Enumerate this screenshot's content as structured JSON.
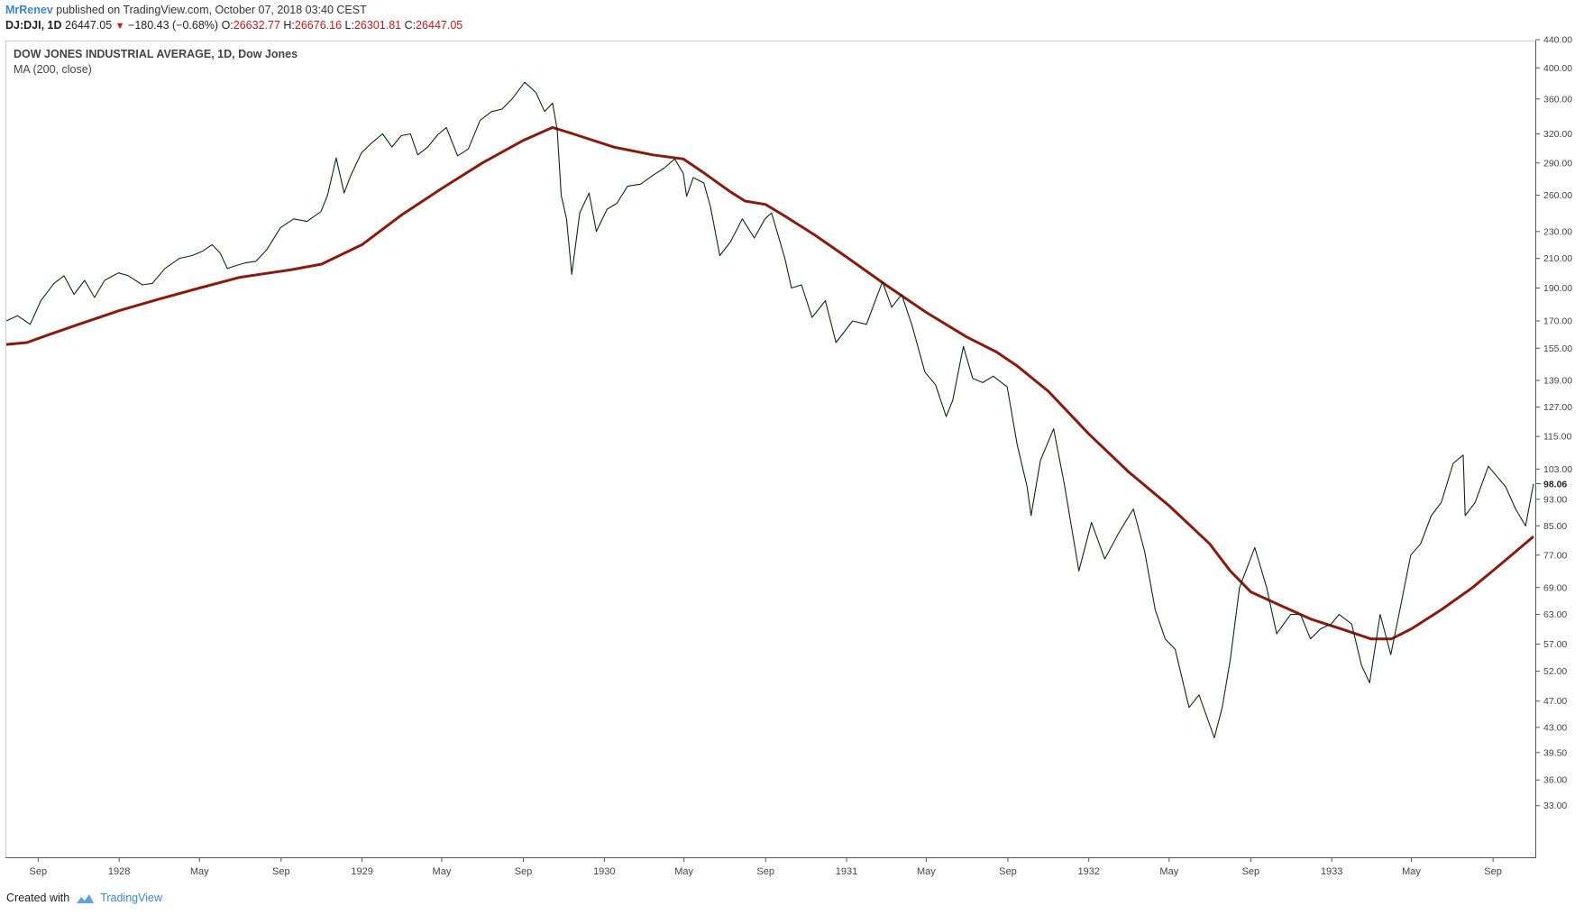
{
  "header": {
    "author": "MrRenev",
    "published": "published on TradingView.com, October 07, 2018 03:40 CEST",
    "symbol": "DJ:DJI, 1D",
    "last": "26447.05",
    "change": "−180.43 (−0.68%)",
    "open_label": "O:",
    "open": "26632.77",
    "high_label": "H:",
    "high": "26676.16",
    "low_label": "L:",
    "low": "26301.81",
    "close_label": "C:",
    "close": "26447.05"
  },
  "legend": {
    "title": "DOW JONES INDUSTRIAL AVERAGE, 1D, Dow Jones",
    "indicator": "MA (200, close)"
  },
  "footer": {
    "created_with": "Created with",
    "brand": "TradingView",
    "brand_icon": "tradingview-cloud-icon"
  },
  "colors": {
    "price": "#0b2a12",
    "ma": "#8b1a0e",
    "axis": "#555555",
    "brand": "#3d85c6",
    "negative": "#c2181c"
  },
  "chart_data": {
    "type": "line",
    "scale": "log",
    "ylim": [
      30,
      440
    ],
    "y_ticks": [
      "440.00",
      "400.00",
      "360.00",
      "320.00",
      "290.00",
      "260.00",
      "230.00",
      "210.00",
      "190.00",
      "170.00",
      "155.00",
      "139.00",
      "127.00",
      "115.00",
      "103.00",
      "93.00",
      "85.00",
      "77.00",
      "69.00",
      "63.00",
      "57.00",
      "52.00",
      "47.00",
      "43.00",
      "39.50",
      "36.00",
      "33.00"
    ],
    "y_tick_values": [
      440,
      400,
      360,
      320,
      290,
      260,
      230,
      210,
      190,
      170,
      155,
      139,
      127,
      115,
      103,
      93,
      85,
      77,
      69,
      63,
      57,
      52,
      47,
      43,
      39.5,
      36,
      33
    ],
    "last_value_label": "98.06",
    "last_value": 98.06,
    "x_range": [
      "1927-07-15",
      "1933-11-01"
    ],
    "x_ticks": [
      {
        "label": "Sep",
        "date": "1927-09-01"
      },
      {
        "label": "1928",
        "date": "1928-01-01"
      },
      {
        "label": "May",
        "date": "1928-05-01"
      },
      {
        "label": "Sep",
        "date": "1928-09-01"
      },
      {
        "label": "1929",
        "date": "1929-01-01"
      },
      {
        "label": "May",
        "date": "1929-05-01"
      },
      {
        "label": "Sep",
        "date": "1929-09-01"
      },
      {
        "label": "1930",
        "date": "1930-01-01"
      },
      {
        "label": "May",
        "date": "1930-05-01"
      },
      {
        "label": "Sep",
        "date": "1930-09-01"
      },
      {
        "label": "1931",
        "date": "1931-01-01"
      },
      {
        "label": "May",
        "date": "1931-05-01"
      },
      {
        "label": "Sep",
        "date": "1931-09-01"
      },
      {
        "label": "1932",
        "date": "1932-01-01"
      },
      {
        "label": "May",
        "date": "1932-05-01"
      },
      {
        "label": "Sep",
        "date": "1932-09-01"
      },
      {
        "label": "1933",
        "date": "1933-01-01"
      },
      {
        "label": "May",
        "date": "1933-05-01"
      },
      {
        "label": "Sep",
        "date": "1933-09-01"
      }
    ],
    "series": [
      {
        "name": "DOW JONES INDUSTRIAL AVERAGE",
        "points": [
          [
            "1927-07-15",
            170
          ],
          [
            "1927-08-01",
            173
          ],
          [
            "1927-08-20",
            168
          ],
          [
            "1927-09-05",
            182
          ],
          [
            "1927-09-25",
            193
          ],
          [
            "1927-10-10",
            198
          ],
          [
            "1927-10-25",
            186
          ],
          [
            "1927-11-10",
            195
          ],
          [
            "1927-11-25",
            184
          ],
          [
            "1927-12-10",
            195
          ],
          [
            "1927-12-31",
            200
          ],
          [
            "1928-01-15",
            198
          ],
          [
            "1928-02-05",
            192
          ],
          [
            "1928-02-20",
            193
          ],
          [
            "1928-03-10",
            203
          ],
          [
            "1928-04-01",
            210
          ],
          [
            "1928-04-20",
            212
          ],
          [
            "1928-05-05",
            215
          ],
          [
            "1928-05-20",
            220
          ],
          [
            "1928-06-01",
            214
          ],
          [
            "1928-06-12",
            203
          ],
          [
            "1928-06-25",
            205
          ],
          [
            "1928-07-10",
            207
          ],
          [
            "1928-07-25",
            208
          ],
          [
            "1928-08-10",
            216
          ],
          [
            "1928-08-31",
            233
          ],
          [
            "1928-09-20",
            240
          ],
          [
            "1928-10-10",
            238
          ],
          [
            "1928-10-31",
            246
          ],
          [
            "1928-11-10",
            260
          ],
          [
            "1928-11-23",
            295
          ],
          [
            "1928-12-05",
            262
          ],
          [
            "1928-12-15",
            278
          ],
          [
            "1928-12-31",
            300
          ],
          [
            "1929-01-15",
            310
          ],
          [
            "1929-02-01",
            320
          ],
          [
            "1929-02-15",
            306
          ],
          [
            "1929-03-01",
            318
          ],
          [
            "1929-03-15",
            320
          ],
          [
            "1929-03-26",
            298
          ],
          [
            "1929-04-10",
            306
          ],
          [
            "1929-04-25",
            319
          ],
          [
            "1929-05-08",
            327
          ],
          [
            "1929-05-25",
            297
          ],
          [
            "1929-06-10",
            304
          ],
          [
            "1929-06-28",
            335
          ],
          [
            "1929-07-15",
            345
          ],
          [
            "1929-07-31",
            348
          ],
          [
            "1929-08-15",
            360
          ],
          [
            "1929-09-03",
            381
          ],
          [
            "1929-09-20",
            368
          ],
          [
            "1929-10-03",
            345
          ],
          [
            "1929-10-15",
            355
          ],
          [
            "1929-10-22",
            325
          ],
          [
            "1929-10-28",
            260
          ],
          [
            "1929-11-05",
            240
          ],
          [
            "1929-11-13",
            199
          ],
          [
            "1929-11-25",
            245
          ],
          [
            "1929-12-09",
            262
          ],
          [
            "1929-12-20",
            230
          ],
          [
            "1930-01-05",
            248
          ],
          [
            "1930-01-20",
            253
          ],
          [
            "1930-02-05",
            268
          ],
          [
            "1930-02-25",
            270
          ],
          [
            "1930-03-15",
            278
          ],
          [
            "1930-04-01",
            285
          ],
          [
            "1930-04-17",
            294
          ],
          [
            "1930-04-30",
            280
          ],
          [
            "1930-05-05",
            259
          ],
          [
            "1930-05-15",
            276
          ],
          [
            "1930-05-31",
            271
          ],
          [
            "1930-06-10",
            250
          ],
          [
            "1930-06-24",
            212
          ],
          [
            "1930-07-10",
            222
          ],
          [
            "1930-07-28",
            240
          ],
          [
            "1930-08-15",
            225
          ],
          [
            "1930-08-31",
            240
          ],
          [
            "1930-09-10",
            245
          ],
          [
            "1930-09-30",
            210
          ],
          [
            "1930-10-10",
            190
          ],
          [
            "1930-10-25",
            192
          ],
          [
            "1930-11-10",
            172
          ],
          [
            "1930-11-30",
            182
          ],
          [
            "1930-12-16",
            158
          ],
          [
            "1931-01-10",
            170
          ],
          [
            "1931-01-31",
            168
          ],
          [
            "1931-02-24",
            194
          ],
          [
            "1931-03-10",
            178
          ],
          [
            "1931-03-25",
            186
          ],
          [
            "1931-04-10",
            167
          ],
          [
            "1931-04-29",
            143
          ],
          [
            "1931-05-15",
            137
          ],
          [
            "1931-05-31",
            123
          ],
          [
            "1931-06-10",
            130
          ],
          [
            "1931-06-26",
            156
          ],
          [
            "1931-07-10",
            140
          ],
          [
            "1931-07-25",
            138
          ],
          [
            "1931-08-10",
            141
          ],
          [
            "1931-08-31",
            136
          ],
          [
            "1931-09-15",
            112
          ],
          [
            "1931-09-30",
            97
          ],
          [
            "1931-10-06",
            88
          ],
          [
            "1931-10-20",
            106
          ],
          [
            "1931-11-09",
            118
          ],
          [
            "1931-11-25",
            98
          ],
          [
            "1931-12-17",
            73
          ],
          [
            "1932-01-05",
            86
          ],
          [
            "1932-01-25",
            76
          ],
          [
            "1932-02-15",
            83
          ],
          [
            "1932-03-08",
            90
          ],
          [
            "1932-03-25",
            78
          ],
          [
            "1932-04-10",
            64
          ],
          [
            "1932-04-25",
            58
          ],
          [
            "1932-05-10",
            56
          ],
          [
            "1932-05-31",
            46
          ],
          [
            "1932-06-15",
            48
          ],
          [
            "1932-07-08",
            41.5
          ],
          [
            "1932-07-20",
            46
          ],
          [
            "1932-08-01",
            54
          ],
          [
            "1932-08-15",
            69
          ],
          [
            "1932-09-07",
            79
          ],
          [
            "1932-09-25",
            69
          ],
          [
            "1932-10-10",
            59
          ],
          [
            "1932-10-31",
            63
          ],
          [
            "1932-11-15",
            63
          ],
          [
            "1932-11-30",
            58
          ],
          [
            "1932-12-15",
            60
          ],
          [
            "1932-12-31",
            61
          ],
          [
            "1933-01-12",
            63
          ],
          [
            "1933-01-31",
            61
          ],
          [
            "1933-02-15",
            53
          ],
          [
            "1933-02-27",
            50
          ],
          [
            "1933-03-15",
            63
          ],
          [
            "1933-03-31",
            55
          ],
          [
            "1933-04-15",
            65
          ],
          [
            "1933-04-30",
            77
          ],
          [
            "1933-05-15",
            80
          ],
          [
            "1933-05-31",
            88
          ],
          [
            "1933-06-15",
            92
          ],
          [
            "1933-07-03",
            105
          ],
          [
            "1933-07-18",
            108
          ],
          [
            "1933-07-21",
            88
          ],
          [
            "1933-08-05",
            92
          ],
          [
            "1933-08-25",
            104
          ],
          [
            "1933-09-05",
            101
          ],
          [
            "1933-09-20",
            97
          ],
          [
            "1933-10-05",
            90
          ],
          [
            "1933-10-20",
            85
          ],
          [
            "1933-11-01",
            98
          ]
        ]
      },
      {
        "name": "MA (200, close)",
        "points": [
          [
            "1927-07-15",
            157
          ],
          [
            "1927-08-15",
            158
          ],
          [
            "1927-09-15",
            162
          ],
          [
            "1927-11-01",
            168
          ],
          [
            "1928-01-01",
            176
          ],
          [
            "1928-03-01",
            183
          ],
          [
            "1928-05-01",
            190
          ],
          [
            "1928-07-01",
            197
          ],
          [
            "1928-08-15",
            200
          ],
          [
            "1928-09-15",
            202
          ],
          [
            "1928-11-01",
            206
          ],
          [
            "1929-01-01",
            220
          ],
          [
            "1929-03-01",
            243
          ],
          [
            "1929-05-01",
            266
          ],
          [
            "1929-07-01",
            290
          ],
          [
            "1929-09-01",
            313
          ],
          [
            "1929-10-15",
            327
          ],
          [
            "1929-11-15",
            320
          ],
          [
            "1930-01-15",
            306
          ],
          [
            "1930-03-15",
            298
          ],
          [
            "1930-04-30",
            294
          ],
          [
            "1930-06-01",
            280
          ],
          [
            "1930-07-10",
            263
          ],
          [
            "1930-08-01",
            255
          ],
          [
            "1930-09-01",
            252
          ],
          [
            "1930-10-01",
            242
          ],
          [
            "1930-11-15",
            227
          ],
          [
            "1931-01-01",
            211
          ],
          [
            "1931-03-01",
            192
          ],
          [
            "1931-05-01",
            175
          ],
          [
            "1931-07-01",
            161
          ],
          [
            "1931-08-15",
            153
          ],
          [
            "1931-09-15",
            146
          ],
          [
            "1931-11-01",
            134
          ],
          [
            "1932-01-01",
            116
          ],
          [
            "1932-03-01",
            102
          ],
          [
            "1932-05-01",
            91
          ],
          [
            "1932-07-01",
            80
          ],
          [
            "1932-08-01",
            73
          ],
          [
            "1932-09-01",
            68
          ],
          [
            "1932-10-15",
            65
          ],
          [
            "1932-12-01",
            62
          ],
          [
            "1933-01-15",
            60
          ],
          [
            "1933-03-01",
            58
          ],
          [
            "1933-04-01",
            58
          ],
          [
            "1933-05-01",
            60
          ],
          [
            "1933-06-15",
            64
          ],
          [
            "1933-08-01",
            69
          ],
          [
            "1933-09-15",
            75
          ],
          [
            "1933-11-01",
            82
          ]
        ]
      }
    ]
  }
}
